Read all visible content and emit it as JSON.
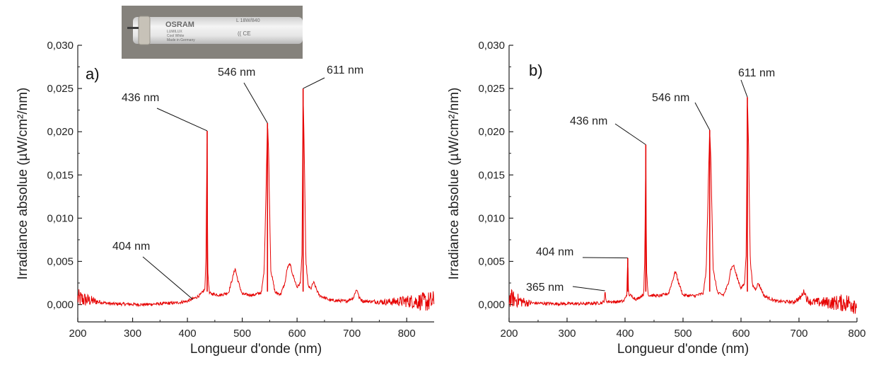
{
  "photo": {
    "brand": "OSRAM",
    "model": "L 18W/840",
    "line1": "LUMILUX",
    "line2": "Cool White",
    "line3": "Made in Germany",
    "marks": "(( CE"
  },
  "chart_data": [
    {
      "type": "line",
      "panel_label": "a)",
      "xlabel": "Longueur d'onde (nm)",
      "ylabel": "Irradiance absolue (µW/cm²/nm)",
      "xlim": [
        200,
        850
      ],
      "ylim": [
        -0.002,
        0.03
      ],
      "x_ticks": [
        200,
        300,
        400,
        500,
        600,
        700,
        800
      ],
      "x_tick_labels": [
        "200",
        "300",
        "400",
        "500",
        "600",
        "700",
        "800"
      ],
      "y_ticks": [
        0,
        0.005,
        0.01,
        0.015,
        0.02,
        0.025,
        0.03
      ],
      "y_tick_labels": [
        "0,000",
        "0,005",
        "0,010",
        "0,015",
        "0,020",
        "0,025",
        "0,030"
      ],
      "line_color": "#e60000",
      "series": [
        {
          "x": [
            200,
            260,
            320,
            380,
            400,
            415,
            425,
            432,
            434,
            435.8,
            437,
            440,
            460,
            475,
            482,
            487,
            492,
            500,
            520,
            535,
            540,
            544,
            546,
            548,
            552,
            560,
            570,
            578,
            582,
            587,
            592,
            600,
            606,
            609,
            611,
            613,
            616,
            620,
            625,
            630,
            640,
            660,
            690,
            703,
            707,
            710,
            713,
            720,
            760,
            800,
            850
          ],
          "y": [
            0.0007,
            0.0001,
            0.0,
            0.0002,
            0.0004,
            0.0008,
            0.0012,
            0.0018,
            0.006,
            0.0201,
            0.004,
            0.0013,
            0.0011,
            0.0014,
            0.003,
            0.0042,
            0.0028,
            0.0012,
            0.0011,
            0.0014,
            0.004,
            0.015,
            0.021,
            0.018,
            0.004,
            0.0014,
            0.0012,
            0.0025,
            0.0042,
            0.0047,
            0.0035,
            0.002,
            0.0025,
            0.006,
            0.025,
            0.018,
            0.0052,
            0.0022,
            0.0018,
            0.0026,
            0.0011,
            0.0005,
            0.0004,
            0.0008,
            0.0016,
            0.0017,
            0.0008,
            0.0004,
            0.0003,
            0.0004,
            0.0003
          ]
        }
      ],
      "annotations": [
        {
          "text": "436 nm",
          "x": 436,
          "y": 0.0201
        },
        {
          "text": "546 nm",
          "x": 546,
          "y": 0.021
        },
        {
          "text": "611 nm",
          "x": 611,
          "y": 0.025
        },
        {
          "text": "404 nm",
          "x": 410,
          "y": 0.0006
        }
      ]
    },
    {
      "type": "line",
      "panel_label": "b)",
      "xlabel": "Longueur d'onde (nm)",
      "ylabel": "Irradiance absolue (µW/cm²/nm)",
      "xlim": [
        200,
        800
      ],
      "ylim": [
        -0.002,
        0.03
      ],
      "x_ticks": [
        200,
        300,
        400,
        500,
        600,
        700,
        800
      ],
      "x_tick_labels": [
        "200",
        "300",
        "400",
        "500",
        "600",
        "700",
        "800"
      ],
      "y_ticks": [
        0,
        0.005,
        0.01,
        0.015,
        0.02,
        0.025,
        0.03
      ],
      "y_tick_labels": [
        "0,000",
        "0,005",
        "0,010",
        "0,015",
        "0,020",
        "0,025",
        "0,030"
      ],
      "line_color": "#e60000",
      "series": [
        {
          "x": [
            200,
            230,
            280,
            330,
            360,
            364,
            365.4,
            367,
            380,
            398,
            403,
            404.7,
            406,
            420,
            432,
            434,
            435.8,
            437,
            440,
            460,
            475,
            482,
            487,
            492,
            500,
            520,
            535,
            540,
            544,
            546,
            548,
            552,
            560,
            570,
            578,
            582,
            587,
            592,
            600,
            606,
            609,
            611,
            613,
            616,
            620,
            625,
            630,
            640,
            660,
            690,
            703,
            707,
            710,
            713,
            720,
            760,
            800
          ],
          "y": [
            0.0008,
            0.0002,
            0.0001,
            0.0001,
            0.0002,
            0.0004,
            0.0016,
            0.0004,
            0.0003,
            0.0004,
            0.0012,
            0.0054,
            0.0012,
            0.0006,
            0.0012,
            0.005,
            0.0185,
            0.004,
            0.0011,
            0.001,
            0.0013,
            0.0028,
            0.0039,
            0.0026,
            0.0011,
            0.001,
            0.0013,
            0.004,
            0.015,
            0.0202,
            0.017,
            0.004,
            0.0013,
            0.0011,
            0.0024,
            0.004,
            0.0046,
            0.0034,
            0.0019,
            0.0024,
            0.006,
            0.024,
            0.0185,
            0.005,
            0.0022,
            0.0018,
            0.0025,
            0.001,
            0.0004,
            0.0003,
            0.0008,
            0.0014,
            0.0015,
            0.0007,
            0.0003,
            0.0002,
            0.0002
          ]
        }
      ],
      "annotations": [
        {
          "text": "365 nm",
          "x": 365.4,
          "y": 0.0016
        },
        {
          "text": "404 nm",
          "x": 404.7,
          "y": 0.0054
        },
        {
          "text": "436 nm",
          "x": 435.8,
          "y": 0.0185
        },
        {
          "text": "546 nm",
          "x": 546,
          "y": 0.0202
        },
        {
          "text": "611 nm",
          "x": 611,
          "y": 0.024
        }
      ]
    }
  ]
}
